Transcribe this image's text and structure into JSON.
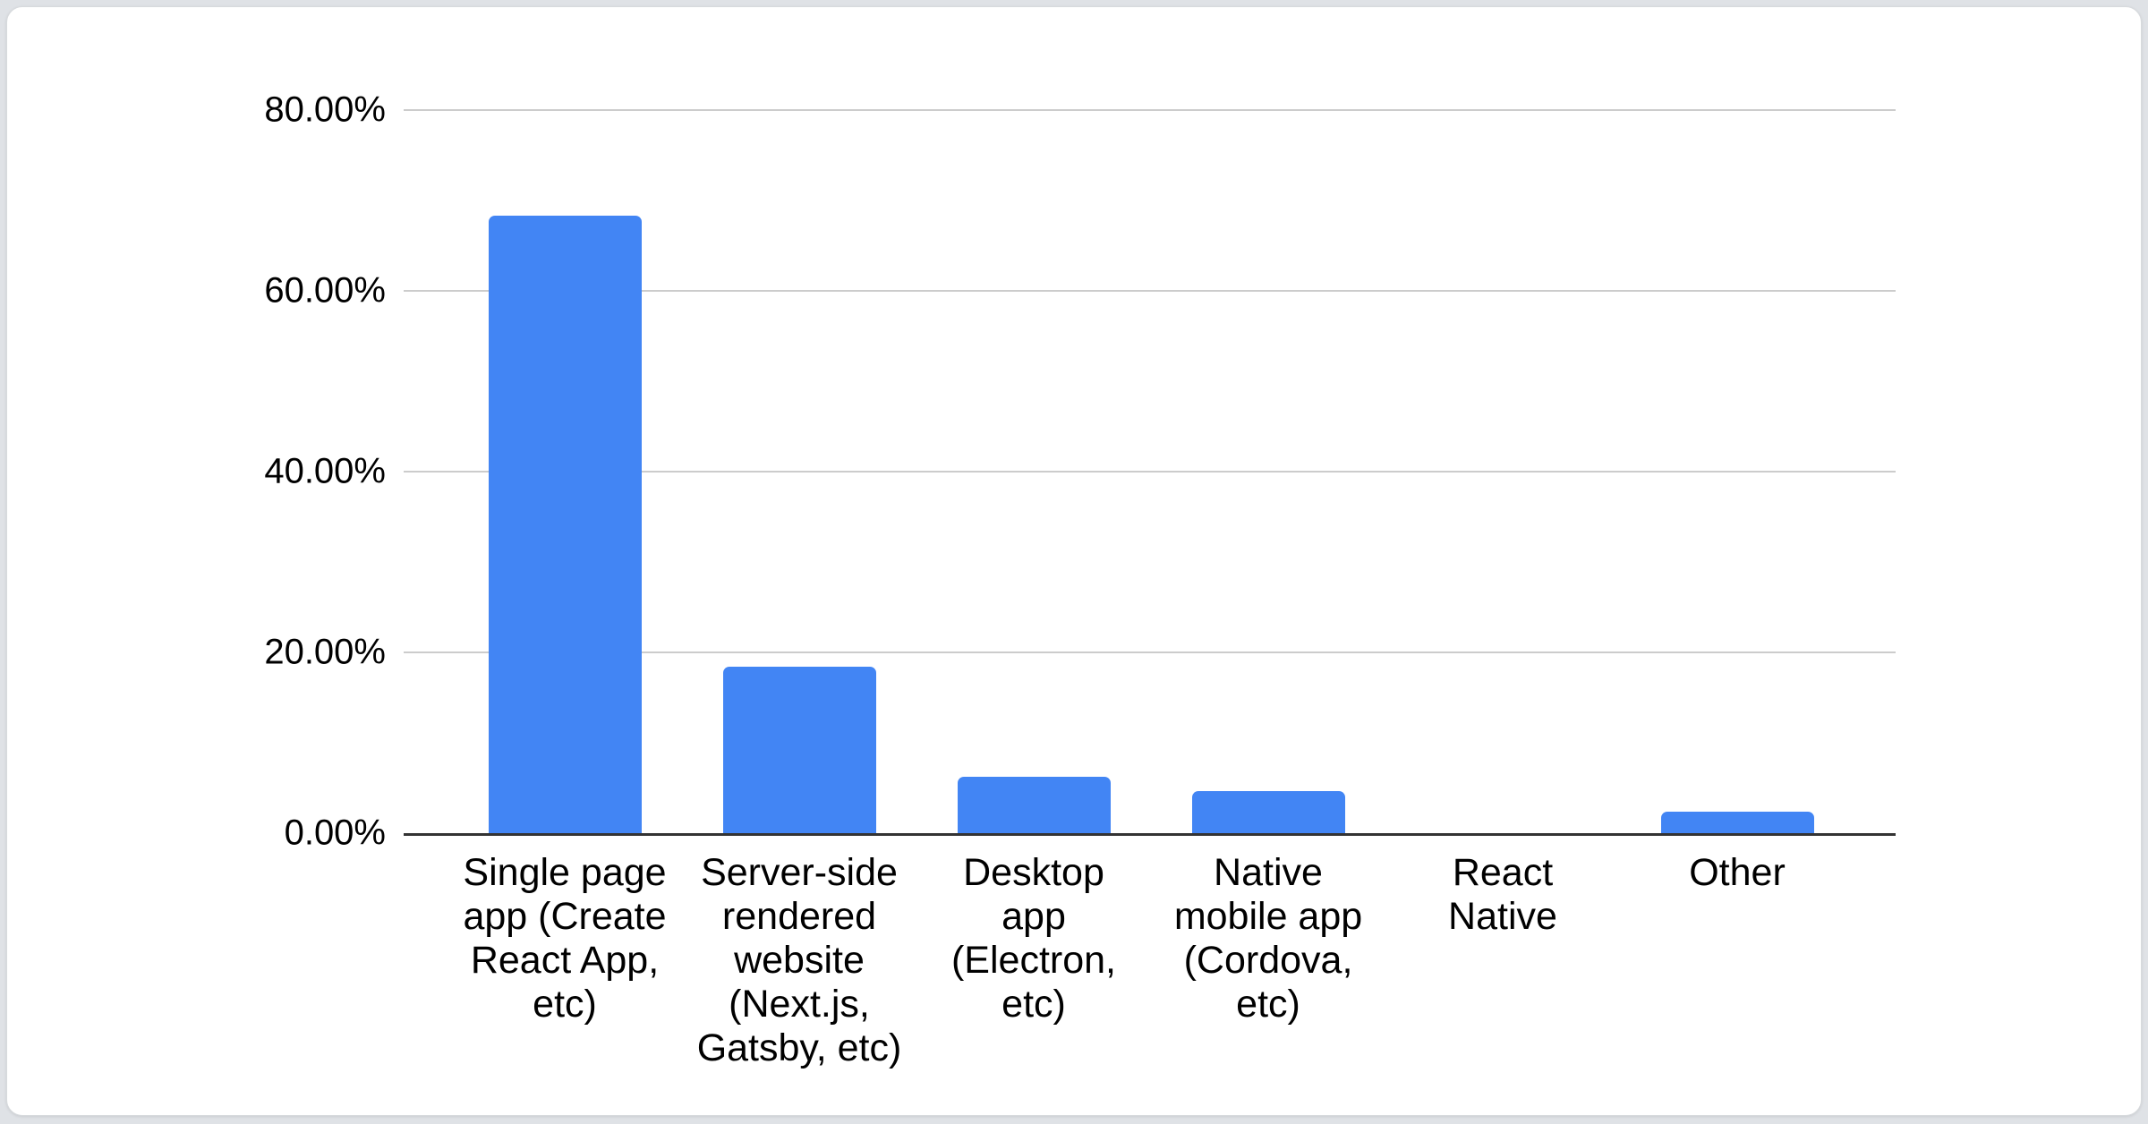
{
  "page": {
    "background_color": "#dfe2e6",
    "card_background": "#ffffff",
    "card_border_color": "#d7dadd"
  },
  "chart_data": {
    "type": "bar",
    "title": "",
    "xlabel": "",
    "ylabel": "",
    "unit": "%",
    "categories": [
      "Single page app (Create React App, etc)",
      "Server-side rendered website (Next.js, Gatsby, etc)",
      "Desktop app (Electron, etc)",
      "Native mobile app (Cordova, etc)",
      "React Native",
      "Other"
    ],
    "category_display_lines": [
      "Single page\napp (Create\nReact App,\netc)",
      "Server-side\nrendered\nwebsite\n(Next.js,\nGatsby, etc)",
      "Desktop\napp\n(Electron,\netc)",
      "Native\nmobile app\n(Cordova,\netc)",
      "React\nNative",
      "Other"
    ],
    "values": [
      68.3,
      18.4,
      6.2,
      4.7,
      0,
      2.4
    ],
    "ylim": [
      0,
      80
    ],
    "yticks": [
      0,
      20,
      40,
      60,
      80
    ],
    "ytick_labels": [
      "0.00%",
      "20.00%",
      "40.00%",
      "60.00%",
      "80.00%"
    ],
    "grid": true,
    "legend": "none",
    "bar_color": "#4285f4",
    "gridline_color": "#cccccc",
    "baseline_color": "#333333",
    "label_color": "#000000"
  }
}
